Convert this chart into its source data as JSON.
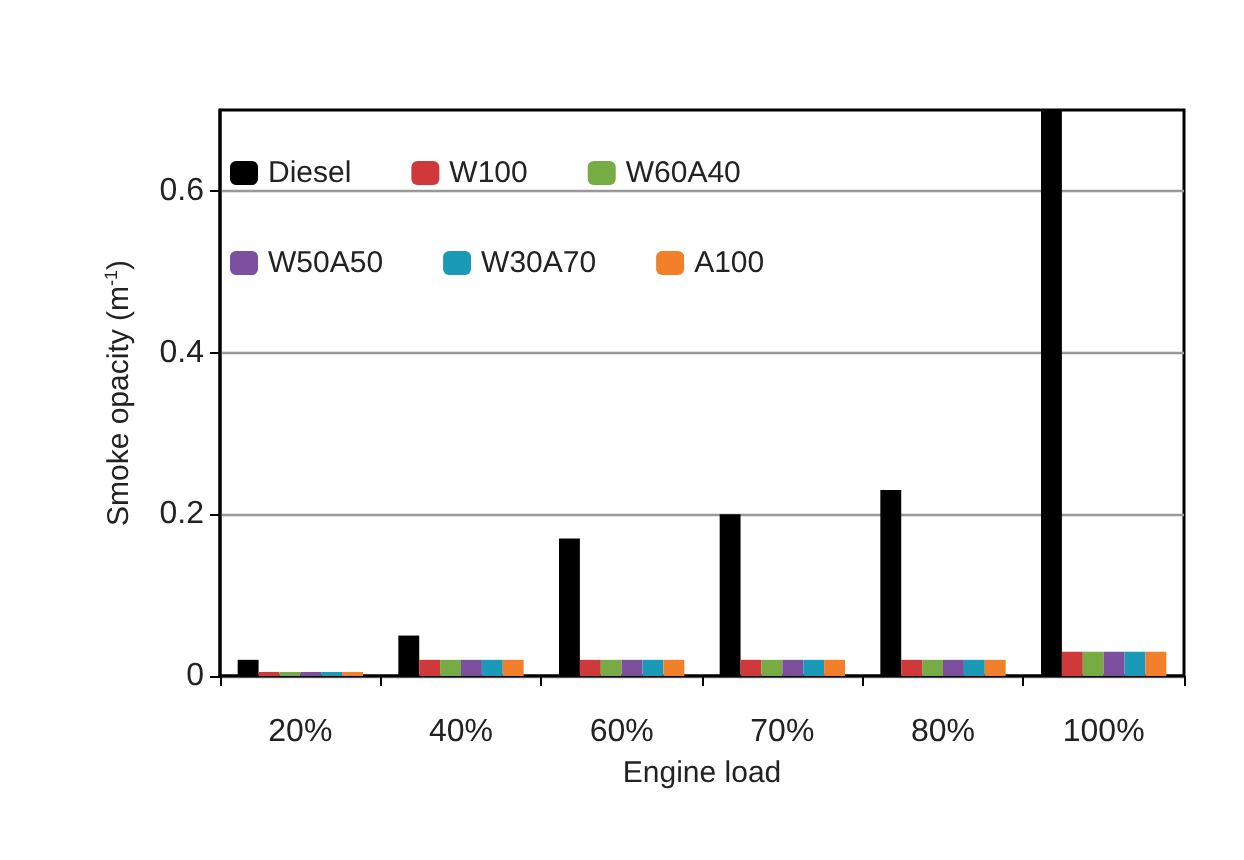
{
  "chart_data": {
    "type": "bar",
    "xlabel": "Engine load",
    "ylabel": "Smoke opacity (m$^{-1}$)",
    "categories": [
      "20%",
      "40%",
      "60%",
      "70%",
      "80%",
      "100%"
    ],
    "series": [
      {
        "name": "Diesel",
        "color": "#000000",
        "values": [
          0.02,
          0.05,
          0.17,
          0.2,
          0.23,
          0.7
        ]
      },
      {
        "name": "W100",
        "color": "#d0393a",
        "values": [
          0.005,
          0.02,
          0.02,
          0.02,
          0.02,
          0.03
        ]
      },
      {
        "name": "W60A40",
        "color": "#77ab43",
        "values": [
          0.005,
          0.02,
          0.02,
          0.02,
          0.02,
          0.03
        ]
      },
      {
        "name": "W50A50",
        "color": "#7d4f9f",
        "values": [
          0.005,
          0.02,
          0.02,
          0.02,
          0.02,
          0.03
        ]
      },
      {
        "name": "W30A70",
        "color": "#1b9ab8",
        "values": [
          0.005,
          0.02,
          0.02,
          0.02,
          0.02,
          0.03
        ]
      },
      {
        "name": "A100",
        "color": "#f2802a",
        "values": [
          0.005,
          0.02,
          0.02,
          0.02,
          0.02,
          0.03
        ]
      }
    ],
    "ylim": [
      0,
      0.7
    ],
    "yticks": [
      0,
      0.2,
      0.4,
      0.6
    ],
    "grid": "y",
    "legend": "top left"
  }
}
